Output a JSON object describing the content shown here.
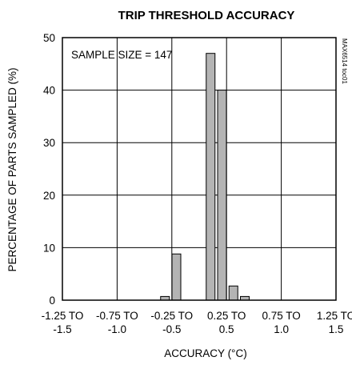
{
  "chart_data": {
    "type": "bar",
    "title": "TRIP THRESHOLD ACCURACY",
    "xlabel": "ACCURACY (°C)",
    "ylabel": "PERCENTAGE OF PARTS SAMPLED (%)",
    "ylim": [
      0,
      50
    ],
    "yticks": [
      "0",
      "10",
      "20",
      "30",
      "40",
      "50"
    ],
    "xticks": [
      [
        "-1.25 TO",
        "-1.5"
      ],
      [
        "-0.75 TO",
        "-1.0"
      ],
      [
        "-0.25 TO",
        "-0.5"
      ],
      [
        "0.25 TO",
        "0.5"
      ],
      [
        "0.75 TO",
        "1.0"
      ],
      [
        "1.25 TO",
        "1.5"
      ]
    ],
    "x": [
      -0.375,
      -0.25,
      0.125,
      0.25,
      0.375,
      0.5
    ],
    "values": [
      0.7,
      8.8,
      47,
      40,
      2.7,
      0.7
    ],
    "xlim": [
      -1.5,
      1.5
    ],
    "grid": true,
    "bar_color": "#b4b4b4",
    "annotation": "SAMPLE SIZE = 147",
    "figure_code": "MAX6514 toc01"
  }
}
